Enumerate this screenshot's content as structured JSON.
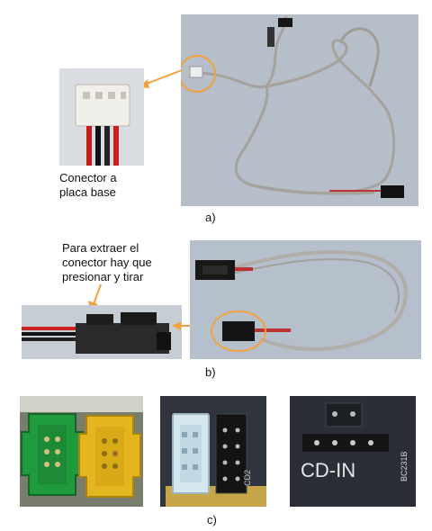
{
  "panel_a": {
    "caption": "a)",
    "label_line1": "Conector a",
    "label_line2": "placa base"
  },
  "panel_b": {
    "caption": "b)",
    "label_line1": "Para extraer el",
    "label_line2": "conector hay que",
    "label_line3": "presionar y tirar"
  },
  "panel_c": {
    "caption": "c)",
    "pcb_text_1": "CD-IN",
    "pcb_text_2": "CD2",
    "pcb_text_3": "BC231B"
  },
  "colors": {
    "annotation": "#f2a23a",
    "cable": "#a9a6a3",
    "photo_bg": "#b7c1cd",
    "green_header": "#1f9a3c",
    "yellow_header": "#e3b51f"
  }
}
